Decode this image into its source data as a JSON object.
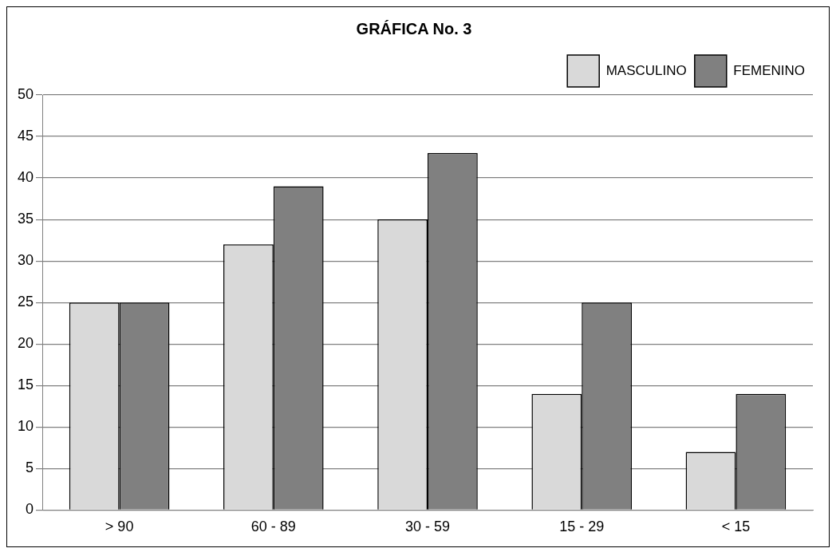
{
  "chart_data": {
    "type": "bar",
    "title": "GRÁFICA No. 3",
    "categories": [
      "> 90",
      "60 - 89",
      "30 - 59",
      "15 - 29",
      "< 15"
    ],
    "series": [
      {
        "name": "MASCULINO",
        "color": "#d9d9d9",
        "values": [
          25,
          32,
          35,
          14,
          7
        ]
      },
      {
        "name": "FEMENINO",
        "color": "#808080",
        "values": [
          25,
          39,
          43,
          25,
          14
        ]
      }
    ],
    "ylim": [
      0,
      50
    ],
    "yticks": [
      0,
      5,
      10,
      15,
      20,
      25,
      30,
      35,
      40,
      45,
      50
    ],
    "grid": "y",
    "legend": "top right"
  }
}
